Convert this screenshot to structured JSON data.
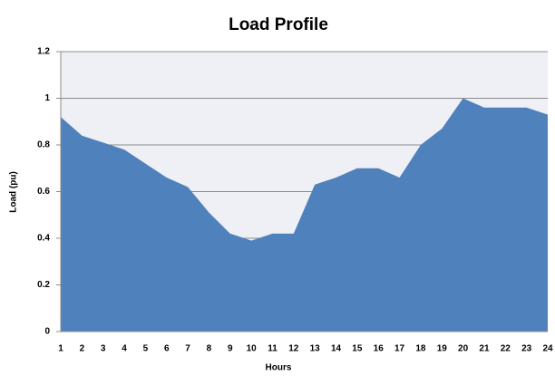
{
  "chart_data": {
    "type": "area",
    "title": "Load Profile",
    "x_label": "Hours",
    "y_label": "Load (pu)",
    "categories": [
      "1",
      "2",
      "3",
      "4",
      "5",
      "6",
      "7",
      "8",
      "9",
      "10",
      "11",
      "12",
      "13",
      "14",
      "15",
      "16",
      "17",
      "18",
      "19",
      "20",
      "21",
      "22",
      "23",
      "24"
    ],
    "values": [
      0.92,
      0.84,
      0.81,
      0.78,
      0.72,
      0.66,
      0.62,
      0.51,
      0.42,
      0.39,
      0.42,
      0.42,
      0.63,
      0.66,
      0.7,
      0.7,
      0.66,
      0.8,
      0.87,
      1.0,
      0.96,
      0.96,
      0.96,
      0.93
    ],
    "color": "#4f81bd",
    "ylim": [
      0,
      1.2
    ],
    "yticks": [
      0,
      0.2,
      0.4,
      0.6,
      0.8,
      1,
      1.2
    ],
    "grid": true
  }
}
